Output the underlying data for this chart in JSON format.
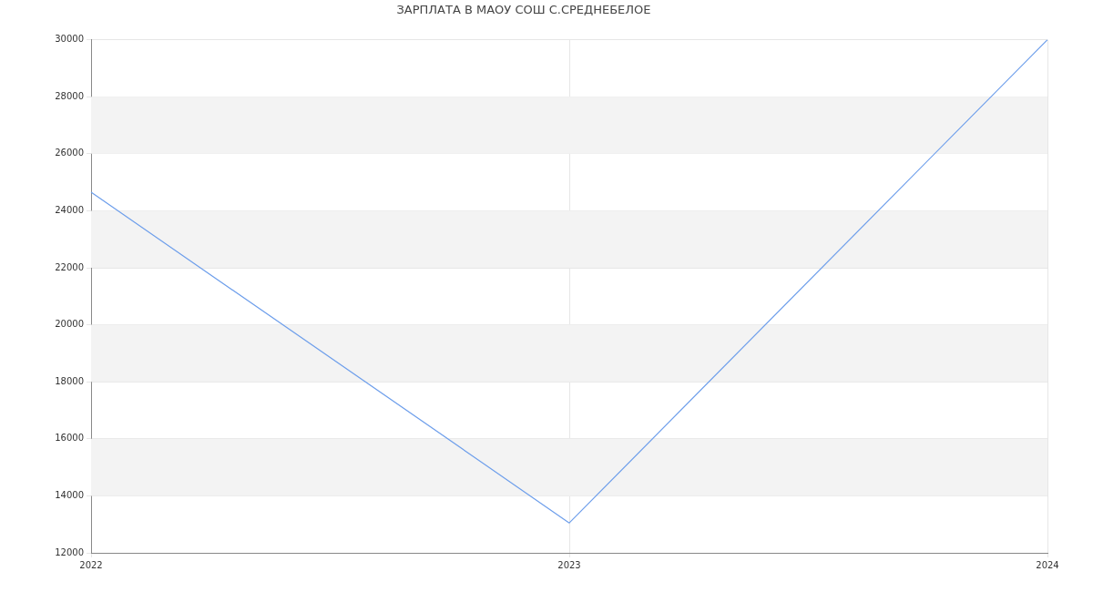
{
  "chart_data": {
    "type": "line",
    "title": "ЗАРПЛАТА В МАОУ СОШ С.СРЕДНЕБЕЛОЕ",
    "categories": [
      "2022",
      "2023",
      "2024"
    ],
    "series": [
      {
        "color": "#6d9eeb",
        "values": [
          24650,
          13050,
          30000
        ]
      }
    ],
    "ylim": [
      12000,
      30000
    ],
    "yticks": [
      12000,
      14000,
      16000,
      18000,
      20000,
      22000,
      24000,
      26000,
      28000,
      30000
    ],
    "grid": true,
    "legend": false,
    "marker": "none",
    "line_style": "solid",
    "bands": [
      {
        "axis": "y",
        "from": 14000,
        "to": 16000,
        "color": "#f3f3f3"
      },
      {
        "axis": "y",
        "from": 18000,
        "to": 20000,
        "color": "#f3f3f3"
      },
      {
        "axis": "y",
        "from": 22000,
        "to": 24000,
        "color": "#f3f3f3"
      },
      {
        "axis": "y",
        "from": 26000,
        "to": 28000,
        "color": "#f3f3f3"
      }
    ]
  }
}
